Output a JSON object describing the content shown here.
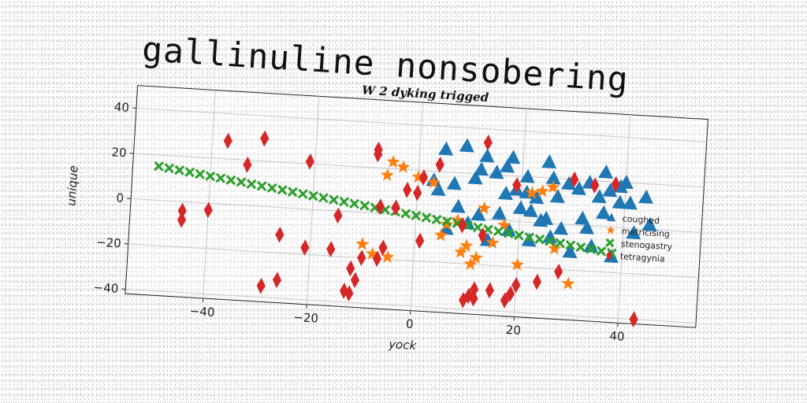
{
  "page_title": "gallinuline nonsobering",
  "chart_data": {
    "type": "scatter",
    "title": "W 2 dyking trigged",
    "xlabel": "yock",
    "ylabel": "unique",
    "xlim": [
      -55,
      55
    ],
    "ylim": [
      -42,
      50
    ],
    "xticks": [
      -40,
      -20,
      0,
      20,
      40
    ],
    "yticks": [
      -40,
      -20,
      0,
      20,
      40
    ],
    "xtick_labels": [
      "−40",
      "−20",
      "0",
      "20",
      "40"
    ],
    "ytick_labels": [
      "−40",
      "−20",
      "0",
      "20",
      "40"
    ],
    "grid": true,
    "legend_position": "right",
    "series": [
      {
        "name": "coughed",
        "marker": "triangle",
        "color": "#1f77b4",
        "x": [
          5,
          9,
          13,
          17,
          21,
          25,
          29,
          33,
          37,
          40,
          7,
          11,
          15,
          19,
          23,
          27,
          31,
          35,
          39,
          44,
          6,
          10,
          14,
          18,
          22,
          26,
          30,
          34,
          38,
          8,
          12,
          16,
          20,
          24,
          28,
          32,
          36,
          4,
          42,
          45,
          3,
          18,
          26,
          22,
          36,
          17,
          41,
          25,
          15,
          33,
          21,
          12,
          39
        ],
        "y": [
          30,
          32,
          28,
          24,
          20,
          27,
          18,
          19,
          16,
          20,
          15,
          18,
          21,
          14,
          11,
          12,
          16,
          13,
          11,
          14,
          -5,
          -2,
          -9,
          -4,
          -8,
          -6,
          -12,
          -9,
          -13,
          5,
          2,
          3,
          6,
          1,
          -2,
          3,
          6,
          12,
          -2,
          2,
          16,
          28,
          20,
          5,
          24,
          12,
          11,
          2,
          21,
          -1,
          13,
          22,
          18
        ]
      },
      {
        "name": "metricising",
        "marker": "star",
        "color": "#ff7f0e",
        "x": [
          -5,
          -3,
          -6,
          5,
          10,
          12,
          13,
          15,
          17,
          20,
          22,
          24,
          26,
          30,
          -10,
          -8,
          -5,
          8,
          11,
          0,
          3,
          6,
          27,
          9
        ],
        "y": [
          23,
          21,
          17,
          -8,
          -12,
          -17,
          5,
          -10,
          -2,
          -19,
          13,
          14,
          16,
          -26,
          -14,
          -18,
          -19,
          -1,
          -20,
          17,
          15,
          -3,
          -11,
          -15
        ],
        "rows": "24 points"
      },
      {
        "name": "stenogastry",
        "marker": "x",
        "color": "#2ca02c",
        "x": [
          -50,
          -48,
          -46,
          -44,
          -42,
          -40,
          -38,
          -36,
          -34,
          -32,
          -30,
          -28,
          -26,
          -24,
          -22,
          -20,
          -18,
          -16,
          -14,
          -12,
          -10,
          -8,
          -6,
          -4,
          -2,
          0,
          2,
          4,
          6,
          8,
          10,
          12,
          14,
          16,
          18,
          20,
          22,
          24,
          26,
          28,
          30,
          32,
          34,
          36,
          38
        ],
        "y": [
          15,
          14.4,
          13.8,
          13.2,
          12.6,
          12,
          11.4,
          10.8,
          10.2,
          9.6,
          9,
          8.4,
          7.8,
          7.2,
          6.6,
          6,
          5.4,
          4.8,
          4.2,
          3.6,
          3,
          2.4,
          1.8,
          1.2,
          0.6,
          0,
          -0.6,
          -1.2,
          -1.8,
          -2.4,
          -3,
          -3.6,
          -4.2,
          -4.8,
          -5.4,
          -6,
          -6.6,
          -7.2,
          -7.8,
          -8.4,
          -9,
          -9.6,
          -10.2,
          -10.8,
          -11.4
        ]
      },
      {
        "name": "tetragynia",
        "marker": "diamond",
        "color": "#d62728",
        "x": [
          -45,
          -45,
          -40,
          -37,
          -33,
          -30,
          -29,
          -26,
          -26,
          -21,
          -21,
          -16,
          -15,
          -13,
          -12,
          -12,
          -11,
          -10,
          -8,
          -8,
          -7,
          -7,
          -6,
          -4,
          0,
          1,
          1,
          4,
          10,
          11,
          12,
          13,
          13,
          15,
          18,
          19,
          19,
          20,
          24,
          28,
          30,
          34,
          38,
          43,
          9,
          12,
          -2
        ],
        "y": [
          -4,
          -8,
          -3,
          28,
          18,
          30,
          -35,
          -32,
          -12,
          -17,
          21,
          -17,
          -2,
          -35,
          -25,
          -36,
          -30,
          -20,
          26,
          28,
          -20,
          3,
          -15,
          3,
          10,
          17,
          -11,
          23,
          -36,
          -34,
          -31,
          -7,
          34,
          -31,
          -35,
          16,
          -32,
          -28,
          -26,
          -21,
          20,
          18,
          19,
          -40,
          -3,
          -35,
          11
        ]
      }
    ]
  }
}
